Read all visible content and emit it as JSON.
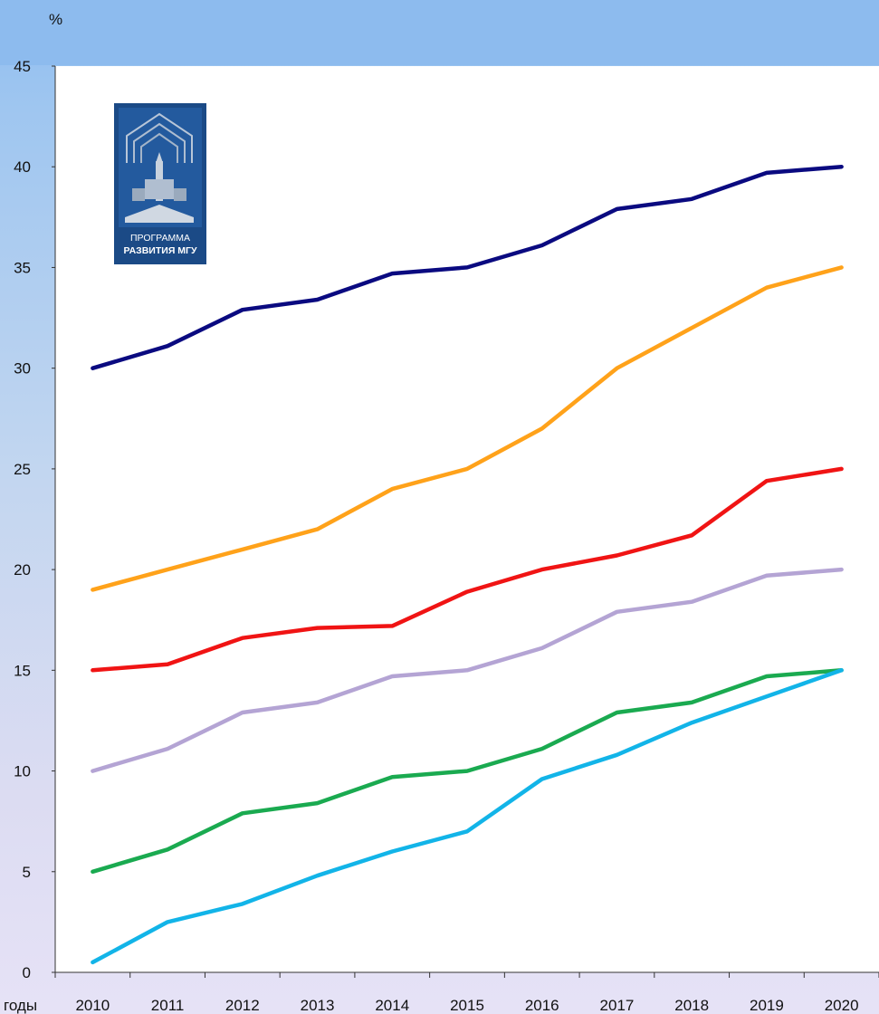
{
  "chart_data": {
    "type": "line",
    "ylabel": "%",
    "xlabel": "годы",
    "ylim": [
      0,
      45
    ],
    "yticks": [
      0,
      5,
      10,
      15,
      20,
      25,
      30,
      35,
      40,
      45
    ],
    "categories": [
      "2010",
      "2011",
      "2012",
      "2013",
      "2014",
      "2015",
      "2016",
      "2017",
      "2018",
      "2019",
      "2020"
    ],
    "grid": false,
    "legend": "none",
    "series": [
      {
        "color": "#0a0a80",
        "values": [
          30,
          31.1,
          32.9,
          33.4,
          34.7,
          35,
          36.1,
          37.9,
          38.4,
          39.7,
          40
        ]
      },
      {
        "color": "#ffa21a",
        "values": [
          19,
          20,
          21,
          22,
          24,
          25,
          27,
          30,
          32,
          34,
          35
        ]
      },
      {
        "color": "#f01414",
        "values": [
          15,
          15.3,
          16.6,
          17.1,
          17.2,
          18.9,
          20,
          20.7,
          21.7,
          24.4,
          25
        ]
      },
      {
        "color": "#b4a4d4",
        "values": [
          10,
          11.1,
          12.9,
          13.4,
          14.7,
          15,
          16.1,
          17.9,
          18.4,
          19.7,
          20
        ]
      },
      {
        "color": "#1aaa50",
        "values": [
          5,
          6.1,
          7.9,
          8.4,
          9.7,
          10,
          11.1,
          12.9,
          13.4,
          14.7,
          15
        ]
      },
      {
        "color": "#12b4e8",
        "values": [
          0.5,
          2.5,
          3.4,
          4.8,
          6,
          7,
          9.6,
          10.8,
          12.4,
          13.7,
          15
        ]
      }
    ]
  },
  "logo": {
    "line1": "ПРОГРАММА",
    "line2": "РАЗВИТИЯ МГУ"
  }
}
